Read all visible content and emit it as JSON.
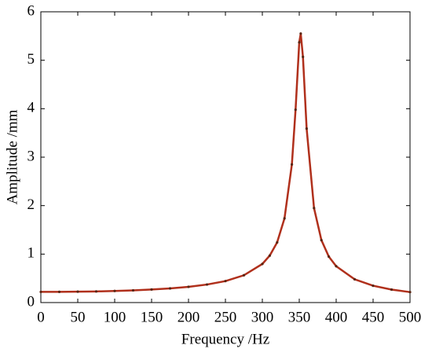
{
  "chart_data": {
    "type": "line",
    "x_label": "Frequency /Hz",
    "y_label": "Amplitude /mm",
    "x": [
      0,
      25,
      50,
      75,
      100,
      125,
      150,
      175,
      200,
      225,
      250,
      275,
      300,
      310,
      320,
      330,
      340,
      345,
      350,
      352,
      355,
      360,
      370,
      380,
      390,
      400,
      425,
      450,
      475,
      500
    ],
    "series": [
      {
        "color": "#b0301c",
        "values": [
          0.22,
          0.221,
          0.225,
          0.23,
          0.239,
          0.252,
          0.269,
          0.292,
          0.325,
          0.372,
          0.443,
          0.563,
          0.797,
          0.969,
          1.241,
          1.737,
          2.85,
          3.98,
          5.37,
          5.55,
          5.07,
          3.59,
          1.95,
          1.288,
          0.949,
          0.75,
          0.48,
          0.347,
          0.268,
          0.216
        ]
      }
    ],
    "xlim": [
      0,
      500
    ],
    "xticks": [
      0,
      50,
      100,
      150,
      200,
      250,
      300,
      350,
      400,
      450,
      500
    ],
    "ylim": [
      0,
      6
    ],
    "yticks": [
      0,
      1,
      2,
      3,
      4,
      5,
      6
    ],
    "grid": false
  }
}
